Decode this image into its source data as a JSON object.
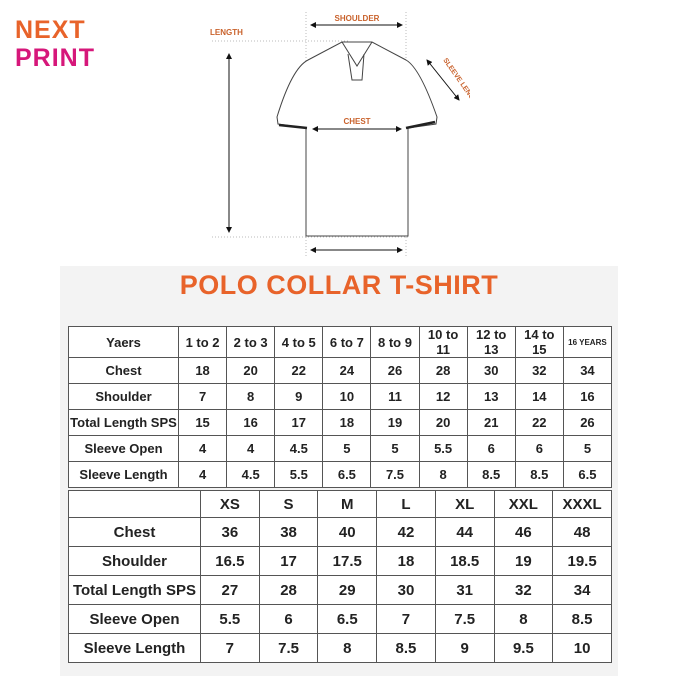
{
  "brand": {
    "line1": "NEXT",
    "line2": "PRINT",
    "color1": "#e8632a",
    "color2": "#d6177a"
  },
  "diagram": {
    "shoulder": "SHOULDER",
    "length": "LENGTH",
    "chest": "CHEST",
    "sleeve_length": "SLEEVE LENGTH"
  },
  "title": "POLO COLLAR T-SHIRT",
  "kids_table": {
    "headers": [
      "Yaers",
      "1 to 2",
      "2 to 3",
      "4 to 5",
      "6 to 7",
      "8 to 9",
      "10 to 11",
      "12 to 13",
      "14 to 15",
      "16 YEARS"
    ],
    "rows": [
      [
        "Chest",
        "18",
        "20",
        "22",
        "24",
        "26",
        "28",
        "30",
        "32",
        "34"
      ],
      [
        "Shoulder",
        "7",
        "8",
        "9",
        "10",
        "11",
        "12",
        "13",
        "14",
        "16"
      ],
      [
        "Total Length SPS",
        "15",
        "16",
        "17",
        "18",
        "19",
        "20",
        "21",
        "22",
        "26"
      ],
      [
        "Sleeve Open",
        "4",
        "4",
        "4.5",
        "5",
        "5",
        "5.5",
        "6",
        "6",
        "5"
      ],
      [
        "Sleeve Length",
        "4",
        "4.5",
        "5.5",
        "6.5",
        "7.5",
        "8",
        "8.5",
        "8.5",
        "6.5"
      ]
    ]
  },
  "adult_table": {
    "headers": [
      "",
      "XS",
      "S",
      "M",
      "L",
      "XL",
      "XXL",
      "XXXL"
    ],
    "rows": [
      [
        "Chest",
        "36",
        "38",
        "40",
        "42",
        "44",
        "46",
        "48"
      ],
      [
        "Shoulder",
        "16.5",
        "17",
        "17.5",
        "18",
        "18.5",
        "19",
        "19.5"
      ],
      [
        "Total Length SPS",
        "27",
        "28",
        "29",
        "30",
        "31",
        "32",
        "34"
      ],
      [
        "Sleeve Open",
        "5.5",
        "6",
        "6.5",
        "7",
        "7.5",
        "8",
        "8.5"
      ],
      [
        "Sleeve Length",
        "7",
        "7.5",
        "8",
        "8.5",
        "9",
        "9.5",
        "10"
      ]
    ]
  }
}
